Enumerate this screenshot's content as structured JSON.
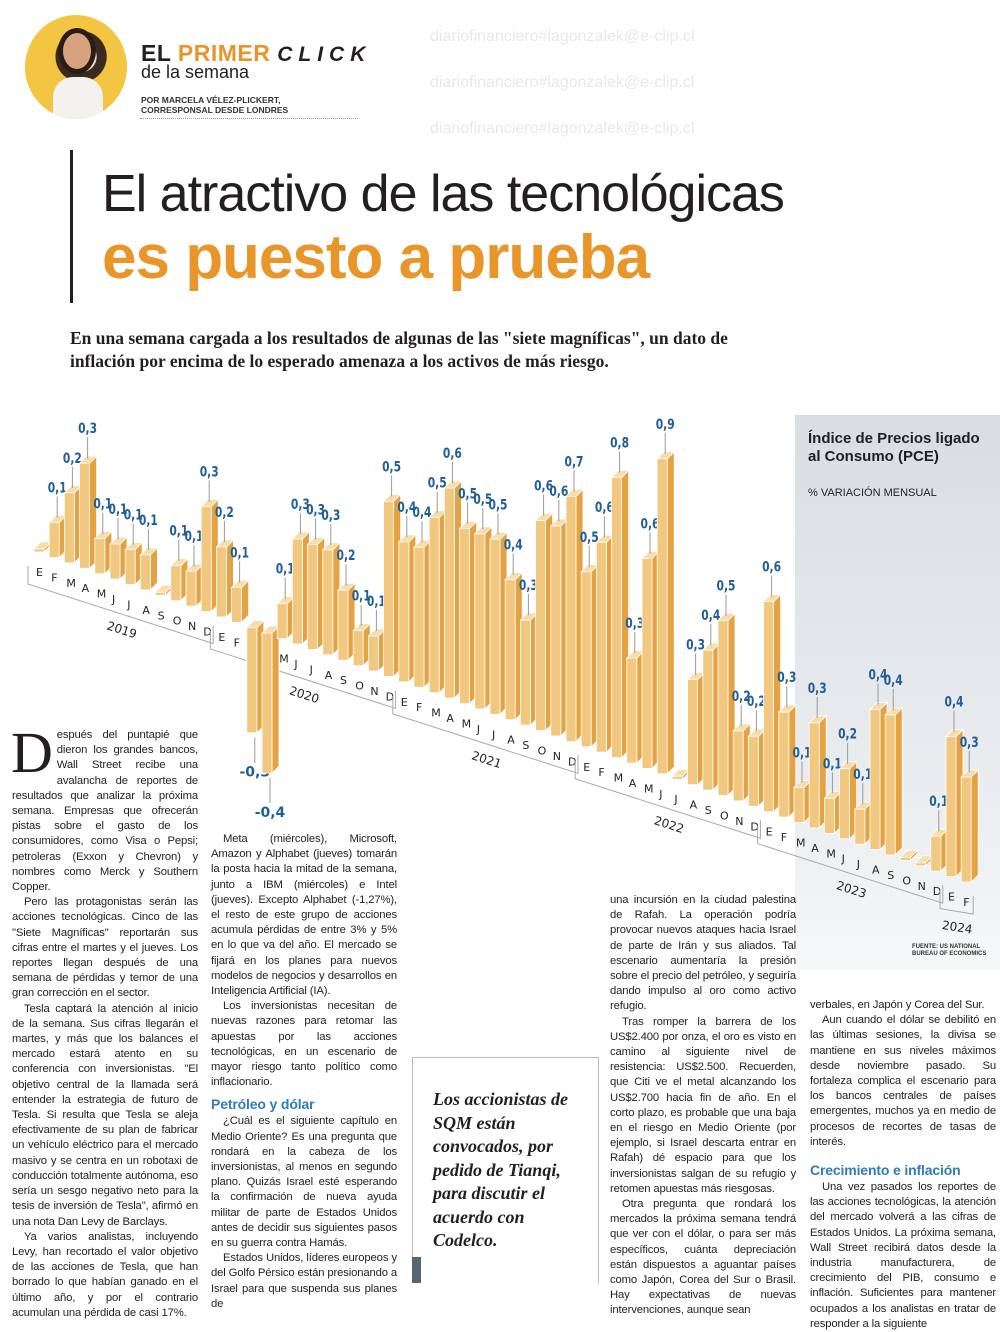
{
  "header": {
    "brand_el": "EL",
    "brand_primer": "PRIMER",
    "brand_click": "CLICK",
    "subtitle": "de la semana",
    "byline_1": "POR MARCELA VÉLEZ-PLICKERT,",
    "byline_2": "CORRESPONSAL DESDE LONDRES"
  },
  "headline": {
    "line1": "El atractivo de las tecnológicas",
    "line2": "es puesto a prueba"
  },
  "watermark": "diariofinanciero#lagonzalek@e-clip.cl",
  "deck": "En una semana cargada a los resultados de algunas de las \"siete magníficas\", un dato de inflación por encima de lo esperado amenaza a los activos de más riesgo.",
  "chart_data": {
    "type": "bar",
    "title": "Índice de Precios ligado al Consumo (PCE)",
    "subtitle": "% VARIACIÓN MENSUAL",
    "source": "FUENTE: US NATIONAL BUREAU OF ECONOMICS",
    "years": [
      "2019",
      "2020",
      "2021",
      "2022",
      "2023",
      "2024"
    ],
    "month_labels": [
      "E",
      "F",
      "M",
      "A",
      "M",
      "J",
      "J",
      "A",
      "S",
      "O",
      "N",
      "D"
    ],
    "values": [
      0.0,
      0.1,
      0.2,
      0.3,
      0.1,
      0.1,
      0.1,
      0.1,
      0.0,
      0.1,
      0.1,
      0.3,
      0.2,
      0.1,
      -0.3,
      -0.4,
      0.1,
      0.3,
      0.3,
      0.3,
      0.2,
      0.1,
      0.1,
      0.5,
      0.4,
      0.4,
      0.5,
      0.6,
      0.5,
      0.5,
      0.5,
      0.4,
      0.3,
      0.6,
      0.6,
      0.7,
      0.5,
      0.6,
      0.8,
      0.3,
      0.6,
      0.9,
      0.0,
      0.3,
      0.4,
      0.5,
      0.2,
      0.2,
      0.6,
      0.3,
      0.1,
      0.3,
      0.1,
      0.2,
      0.1,
      0.4,
      0.4,
      0.0,
      0.0,
      0.1,
      0.4,
      0.3
    ],
    "decimal_separator": ",",
    "colors": {
      "front": "#f2c77f",
      "side": "#e4a243",
      "top": "#f8dcaa",
      "label": "#1f5e96"
    }
  },
  "article": {
    "dropcap": "D",
    "col1": [
      "espués del puntapié que dieron los grandes bancos, Wall Street recibe una avalancha de reportes de resultados que analizar la próxima semana. Empresas que ofrecerán pistas sobre el gasto de los consumidores, como Visa o Pepsi; petroleras (Exxon y Chevron) y nombres como Merck y Southern Copper.",
      "Pero las protagonistas serán las acciones tecnológicas. Cinco de las \"Siete Magníficas\" reportarán sus cifras entre el martes y el jueves. Los reportes llegan después de una semana de pérdidas y temor de una gran corrección en el sector.",
      "Tesla captará la atención al inicio de la semana. Sus cifras llegarán el martes, y más que los balances el mercado estará atento en su conferencia con inversionistas. \"El objetivo central de la llamada será entender la estrategia de futuro de Tesla. Si resulta que Tesla se aleja efectivamente de su plan de fabricar un vehículo eléctrico para el mercado masivo y se centra en un robotaxi de conducción totalmente autónoma, eso sería un sesgo negativo neto para la tesis de inversión de Tesla\", afirmó en una nota Dan Levy de Barclays.",
      "Ya varios analistas, incluyendo Levy, han recortado el valor objetivo de las acciones de Tesla, que han borrado lo que habían ganado en el último año, y por el contrario acumulan una pérdida de casi 17%."
    ],
    "col2": [
      "Meta (miércoles), Microsoft, Amazon y Alphabet (jueves) tomarán la posta hacia la mitad de la semana, junto a IBM (miércoles) e Intel (jueves). Excepto Alphabet (-1,27%), el resto de este grupo de acciones acumula pérdidas de entre 3% y 5% en lo que va del año. El mercado se fijará en los planes para nuevos modelos de negocios y desarrollos en Inteligencia Artificial (IA).",
      "Los inversionistas necesitan de nuevas razones para retomar las apuestas por las acciones tecnológicas, en un escenario de mayor riesgo tanto político como inflacionario."
    ],
    "heading1": "Petróleo y dólar",
    "col2b": [
      "¿Cuál es el siguiente capítulo en Medio Oriente? Es una pregunta que rondará en la cabeza de los inversionistas, al menos en segundo plano. Quizás Israel esté esperando la confirmación de nueva ayuda militar de parte de Estados Unidos antes de decidir sus siguientes pasos en su guerra contra Hamás.",
      "Estados Unidos, líderes europeos y del Golfo Pérsico están presionando a Israel para que suspenda sus planes de"
    ],
    "col3": [
      "una incursión en la ciudad palestina de Rafah. La operación podría provocar nuevos ataques hacia Israel de parte de Irán y sus aliados. Tal escenario aumentaría la presión sobre el precio del petróleo, y seguiría dando impulso al oro como activo refugio.",
      "Tras romper la barrera de los US$2.400 por onza, el oro es visto en camino al siguiente nivel de resistencia: US$2.500. Recuerden, que Citi ve el metal alcanzando los US$2.700 hacia fin de año. En el corto plazo, es probable que una baja en el riesgo en Medio Oriente (por ejemplo, si Israel descarta entrar en Rafah) dé espacio para que los inversionistas salgan de su refugio y retomen apuestas más riesgosas.",
      "Otra pregunta que rondará los mercados la próxima semana tendrá que ver con el dólar, o para ser más específicos, cuánta depreciación están dispuestos a aguantar países como Japón, Corea del Sur o Brasil. Hay expectativas de nuevas intervenciones, aunque sean"
    ],
    "col4": [
      "verbales, en Japón y Corea del Sur.",
      "Aun cuando el dólar se debilitó en las últimas sesiones, la divisa se mantiene en sus niveles máximos desde noviembre pasado. Su fortaleza complica el escenario para los bancos centrales de países emergentes, muchos ya en medio de procesos de recortes de tasas de interés."
    ],
    "heading2": "Crecimiento e inflación",
    "col4b": [
      "Una vez pasados los reportes de las acciones tecnológicas, la atención del mercado volverá a las cifras de Estados Unidos. La próxima semana, Wall Street recibirá datos desde la industria manufacturera, de crecimiento del PIB, consumo e inflación. Suficientes para mantener ocupados a los analistas en tratar de responder a la siguiente"
    ]
  },
  "pull_quote": "Los accionistas de SQM están convocados, por pedido de Tianqi, para discutir el acuerdo con Codelco."
}
